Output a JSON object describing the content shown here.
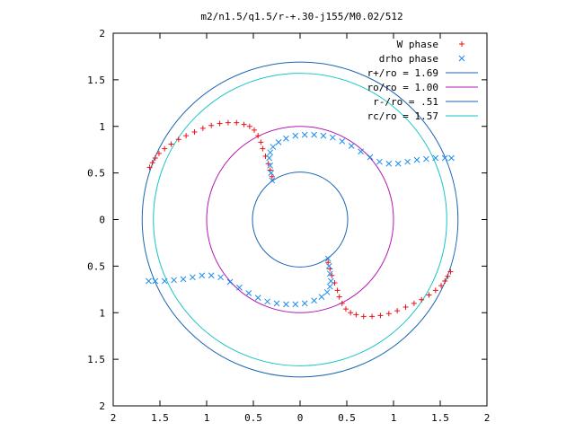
{
  "chart_data": {
    "type": "scatter",
    "title": "m2/n1.5/q1.5/r-+.30-j155/M0.02/512",
    "xlim": [
      -2,
      2
    ],
    "ylim": [
      -2,
      2
    ],
    "x_ticks": [
      {
        "v": -2,
        "label": "2"
      },
      {
        "v": -1.5,
        "label": "1.5"
      },
      {
        "v": -1,
        "label": "1"
      },
      {
        "v": -0.5,
        "label": "0.5"
      },
      {
        "v": 0,
        "label": "0"
      },
      {
        "v": 0.5,
        "label": "0.5"
      },
      {
        "v": 1,
        "label": "1"
      },
      {
        "v": 1.5,
        "label": "1.5"
      },
      {
        "v": 2,
        "label": "2"
      }
    ],
    "y_ticks": [
      {
        "v": 2,
        "label": "2"
      },
      {
        "v": 1.5,
        "label": "1.5"
      },
      {
        "v": 1,
        "label": "1"
      },
      {
        "v": 0.5,
        "label": "0.5"
      },
      {
        "v": 0,
        "label": "0"
      },
      {
        "v": -0.5,
        "label": "0.5"
      },
      {
        "v": -1,
        "label": "1"
      },
      {
        "v": -1.5,
        "label": "1.5"
      },
      {
        "v": -2,
        "label": "2"
      }
    ],
    "grid": false,
    "legend_position": "top-right",
    "circles": [
      {
        "label": "r+/ro = 1.69",
        "r": 1.69,
        "color": "#1a66b3"
      },
      {
        "label": "ro/ro = 1.00",
        "r": 1.0,
        "color": "#b31ab3"
      },
      {
        "label": "r-/ro = .51",
        "r": 0.51,
        "color": "#1a66b3"
      },
      {
        "label": "rc/ro = 1.57",
        "r": 1.57,
        "color": "#1ac4c4"
      }
    ],
    "series": [
      {
        "name": "W phase",
        "marker": "+",
        "color": "#e8121a",
        "points": [
          [
            -1.61,
            0.56
          ],
          [
            -1.58,
            0.61
          ],
          [
            -1.55,
            0.66
          ],
          [
            -1.51,
            0.71
          ],
          [
            -1.45,
            0.76
          ],
          [
            -1.38,
            0.81
          ],
          [
            -1.3,
            0.86
          ],
          [
            -1.22,
            0.9
          ],
          [
            -1.13,
            0.94
          ],
          [
            -1.04,
            0.98
          ],
          [
            -0.95,
            1.01
          ],
          [
            -0.86,
            1.03
          ],
          [
            -0.77,
            1.04
          ],
          [
            -0.68,
            1.04
          ],
          [
            -0.6,
            1.02
          ],
          [
            -0.54,
            1.0
          ],
          [
            -0.49,
            0.96
          ],
          [
            -0.45,
            0.9
          ],
          [
            -0.42,
            0.83
          ],
          [
            -0.4,
            0.76
          ],
          [
            -0.37,
            0.68
          ],
          [
            -0.34,
            0.6
          ],
          [
            -0.32,
            0.53
          ],
          [
            -0.3,
            0.46
          ],
          [
            1.61,
            -0.56
          ],
          [
            1.58,
            -0.61
          ],
          [
            1.55,
            -0.66
          ],
          [
            1.51,
            -0.71
          ],
          [
            1.45,
            -0.76
          ],
          [
            1.38,
            -0.81
          ],
          [
            1.3,
            -0.86
          ],
          [
            1.22,
            -0.9
          ],
          [
            1.13,
            -0.94
          ],
          [
            1.04,
            -0.98
          ],
          [
            0.95,
            -1.01
          ],
          [
            0.86,
            -1.03
          ],
          [
            0.77,
            -1.04
          ],
          [
            0.68,
            -1.04
          ],
          [
            0.6,
            -1.02
          ],
          [
            0.54,
            -1.0
          ],
          [
            0.49,
            -0.96
          ],
          [
            0.45,
            -0.9
          ],
          [
            0.42,
            -0.83
          ],
          [
            0.4,
            -0.76
          ],
          [
            0.37,
            -0.68
          ],
          [
            0.34,
            -0.6
          ],
          [
            0.32,
            -0.53
          ],
          [
            0.3,
            -0.46
          ]
        ]
      },
      {
        "name": "drho phase",
        "marker": "x",
        "color": "#1a8cf0",
        "points": [
          [
            -0.3,
            0.42
          ],
          [
            -0.31,
            0.5
          ],
          [
            -0.32,
            0.58
          ],
          [
            -0.33,
            0.66
          ],
          [
            -0.32,
            0.72
          ],
          [
            -0.29,
            0.78
          ],
          [
            -0.23,
            0.83
          ],
          [
            -0.15,
            0.87
          ],
          [
            -0.05,
            0.9
          ],
          [
            0.05,
            0.91
          ],
          [
            0.15,
            0.91
          ],
          [
            0.25,
            0.9
          ],
          [
            0.35,
            0.88
          ],
          [
            0.45,
            0.84
          ],
          [
            0.55,
            0.79
          ],
          [
            0.65,
            0.73
          ],
          [
            0.75,
            0.67
          ],
          [
            0.85,
            0.62
          ],
          [
            0.95,
            0.6
          ],
          [
            1.05,
            0.6
          ],
          [
            1.15,
            0.62
          ],
          [
            1.25,
            0.64
          ],
          [
            1.35,
            0.65
          ],
          [
            1.45,
            0.66
          ],
          [
            1.55,
            0.66
          ],
          [
            1.62,
            0.66
          ],
          [
            0.3,
            -0.42
          ],
          [
            0.31,
            -0.5
          ],
          [
            0.32,
            -0.58
          ],
          [
            0.33,
            -0.66
          ],
          [
            0.32,
            -0.72
          ],
          [
            0.29,
            -0.78
          ],
          [
            0.23,
            -0.83
          ],
          [
            0.15,
            -0.87
          ],
          [
            0.05,
            -0.9
          ],
          [
            -0.05,
            -0.91
          ],
          [
            -0.15,
            -0.91
          ],
          [
            -0.25,
            -0.9
          ],
          [
            -0.35,
            -0.88
          ],
          [
            -0.45,
            -0.84
          ],
          [
            -0.55,
            -0.79
          ],
          [
            -0.65,
            -0.73
          ],
          [
            -0.75,
            -0.67
          ],
          [
            -0.85,
            -0.62
          ],
          [
            -0.95,
            -0.6
          ],
          [
            -1.05,
            -0.6
          ],
          [
            -1.15,
            -0.62
          ],
          [
            -1.25,
            -0.64
          ],
          [
            -1.35,
            -0.65
          ],
          [
            -1.45,
            -0.66
          ],
          [
            -1.55,
            -0.66
          ],
          [
            -1.62,
            -0.66
          ]
        ]
      }
    ]
  }
}
